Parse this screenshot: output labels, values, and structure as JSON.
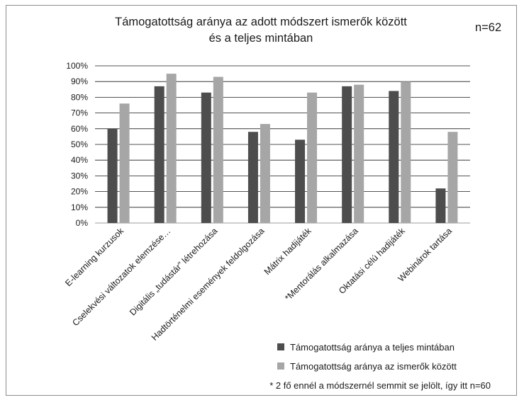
{
  "chart_data": {
    "type": "bar",
    "title_lines": [
      "Támogatottság aránya az adott módszert ismerők között",
      "és a teljes mintában"
    ],
    "sample_label": "n=62",
    "categories": [
      "E-learning kurzusok",
      "Cselekvési változatok elemzése…",
      "Digitális „tudástár” létrehozása",
      "Hadtörténelmi események feldolgozása",
      "Mátrix hadijáték",
      "*Mentorálás alkalmazása",
      "Oktatási célú hadijáték",
      "Webinárok tartása"
    ],
    "series": [
      {
        "name": "Támogatottság aránya a teljes mintában",
        "color": "#4d4d4d",
        "values": [
          60,
          87,
          83,
          58,
          53,
          87,
          84,
          22
        ]
      },
      {
        "name": "Támogatottság aránya az ismerők között",
        "color": "#a6a6a6",
        "values": [
          76,
          95,
          93,
          63,
          83,
          88,
          90,
          58
        ]
      }
    ],
    "y_ticks": [
      "0%",
      "10%",
      "20%",
      "30%",
      "40%",
      "50%",
      "60%",
      "70%",
      "80%",
      "90%",
      "100%"
    ],
    "ylim": [
      0,
      100
    ],
    "y_unit": "%",
    "grid": true,
    "legend_position": "bottom-right",
    "footnote": "* 2 fő ennél a módszernél semmit se jelölt, így itt n=60"
  }
}
